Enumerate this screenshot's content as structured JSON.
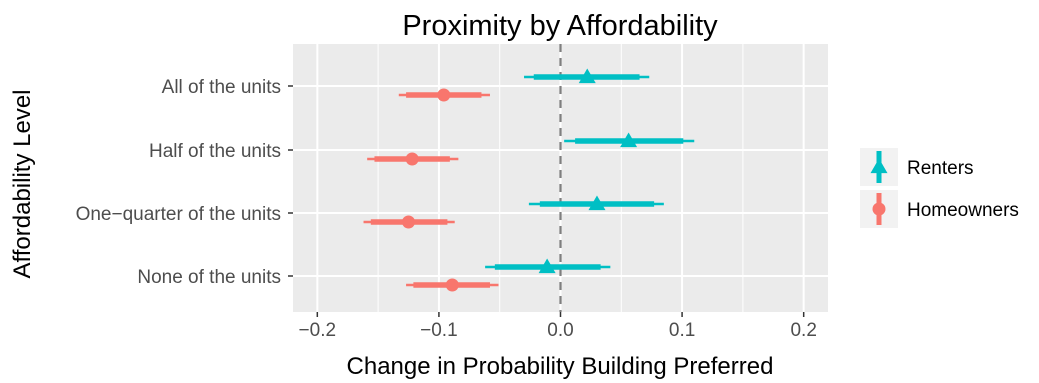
{
  "chart_data": {
    "type": "scatter",
    "title": "Proximity by Affordability",
    "xlabel": "Change in Probability Building Preferred",
    "ylabel": "Affordability Level",
    "xlim": [
      -0.22,
      0.22
    ],
    "x_ticks": [
      -0.2,
      -0.1,
      0.0,
      0.1,
      0.2
    ],
    "x_tick_labels": [
      "−0.2",
      "−0.1",
      "0.0",
      "0.1",
      "0.2"
    ],
    "reference_line_x": 0,
    "categories": [
      "All of the units",
      "Half of the units",
      "One−quarter of the units",
      "None of the units"
    ],
    "grid": true,
    "legend_position": "right",
    "series": [
      {
        "name": "Renters",
        "color": "#00BFC4",
        "marker": "triangle",
        "points": [
          {
            "category": "All of the units",
            "estimate": 0.022,
            "inner": [
              -0.022,
              0.065
            ],
            "outer": [
              -0.03,
              0.073
            ]
          },
          {
            "category": "Half of the units",
            "estimate": 0.056,
            "inner": [
              0.012,
              0.101
            ],
            "outer": [
              0.003,
              0.11
            ]
          },
          {
            "category": "One−quarter of the units",
            "estimate": 0.03,
            "inner": [
              -0.017,
              0.077
            ],
            "outer": [
              -0.026,
              0.085
            ]
          },
          {
            "category": "None of the units",
            "estimate": -0.011,
            "inner": [
              -0.054,
              0.033
            ],
            "outer": [
              -0.062,
              0.041
            ]
          }
        ]
      },
      {
        "name": "Homeowners",
        "color": "#F8766D",
        "marker": "circle",
        "points": [
          {
            "category": "All of the units",
            "estimate": -0.096,
            "inner": [
              -0.127,
              -0.065
            ],
            "outer": [
              -0.133,
              -0.058
            ]
          },
          {
            "category": "Half of the units",
            "estimate": -0.122,
            "inner": [
              -0.153,
              -0.091
            ],
            "outer": [
              -0.159,
              -0.084
            ]
          },
          {
            "category": "One−quarter of the units",
            "estimate": -0.125,
            "inner": [
              -0.156,
              -0.093
            ],
            "outer": [
              -0.162,
              -0.087
            ]
          },
          {
            "category": "None of the units",
            "estimate": -0.089,
            "inner": [
              -0.121,
              -0.058
            ],
            "outer": [
              -0.127,
              -0.051
            ]
          }
        ]
      }
    ]
  }
}
